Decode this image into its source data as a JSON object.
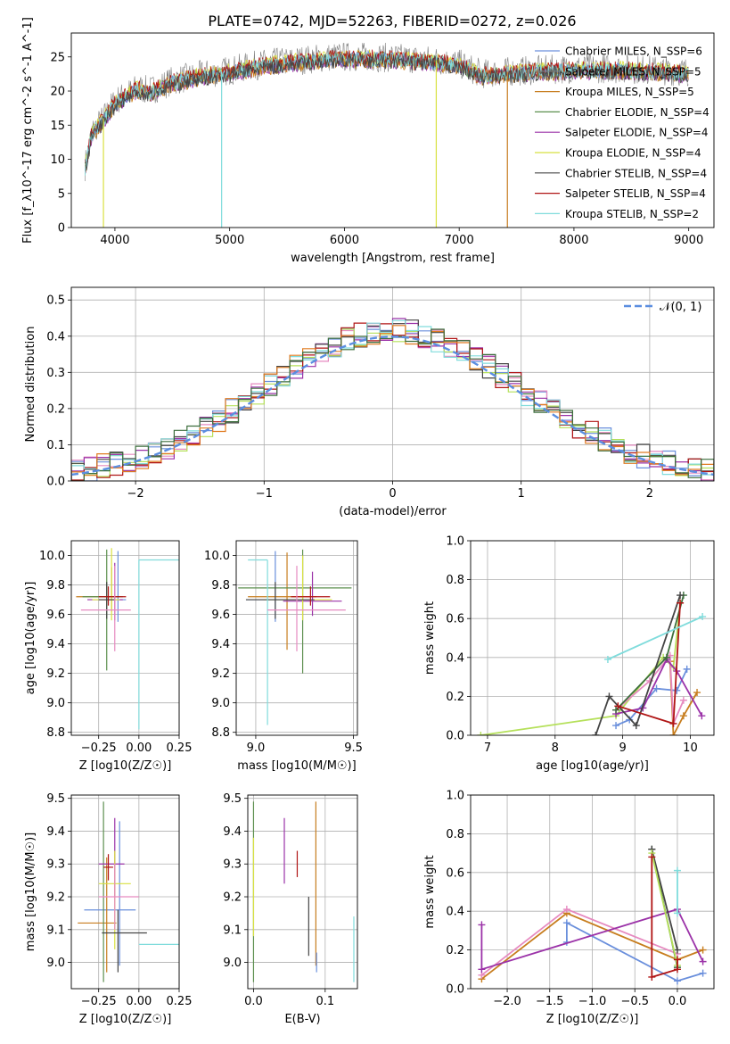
{
  "figure_title": "PLATE=0742, MJD=52263, FIBERID=0272, z=0.026",
  "colors": {
    "Chabrier MILES": "#6a8fdc",
    "Salpeter MILES": "#7f7f7f",
    "Kroupa MILES": "#c77d1e",
    "Chabrier ELODIE": "#5c8f4e",
    "Salpeter ELODIE": "#9b32a8",
    "Kroupa ELODIE": "#d8e040",
    "Chabrier STELIB": "#444444",
    "Salpeter STELIB": "#b01515",
    "Kroupa STELIB": "#80dcdc",
    "orange": "#e07b20",
    "pink": "#e68ac0",
    "lime": "#b5e05a",
    "green": "#3c6e3c",
    "purple": "#9b32a8",
    "gauss": "#5b8ee0"
  },
  "chart_data": [
    {
      "id": "spectrum",
      "type": "line",
      "title": "PLATE=0742, MJD=52263, FIBERID=0272, z=0.026",
      "xlabel": "wavelength [Angstrom, rest frame]",
      "ylabel": "Flux [f_λ10^-17 erg cm^-2 s^-1 A^-1]",
      "xlim": [
        3620,
        9220
      ],
      "ylim": [
        0,
        28.5
      ],
      "xticks": [
        4000,
        5000,
        6000,
        7000,
        8000,
        9000
      ],
      "yticks": [
        0,
        5,
        10,
        15,
        20,
        25
      ],
      "legend_position": "top-right",
      "legend": [
        "Chabrier MILES, N_SSP=6",
        "Salpeter MILES, N_SSP=5",
        "Kroupa MILES, N_SSP=5",
        "Chabrier ELODIE, N_SSP=4",
        "Salpeter ELODIE, N_SSP=4",
        "Kroupa ELODIE, N_SSP=4",
        "Chabrier STELIB, N_SSP=4",
        "Salpeter STELIB, N_SSP=4",
        "Kroupa STELIB, N_SSP=2"
      ],
      "continuum": {
        "x": [
          3740,
          3800,
          3900,
          4000,
          4100,
          4200,
          4300,
          4500,
          4800,
          5000,
          5300,
          5600,
          5900,
          6200,
          6500,
          6800,
          7000,
          7200,
          7400,
          7600,
          8000,
          8400,
          8800,
          9000
        ],
        "y": [
          9,
          14,
          16,
          18.5,
          19.5,
          20.5,
          20,
          21.5,
          22.5,
          23,
          24,
          24.5,
          25,
          25,
          24.8,
          24.5,
          24,
          22.5,
          22.8,
          23,
          23.3,
          23.3,
          23,
          22.8
        ]
      },
      "drops": [
        {
          "x": 3900,
          "to": 0,
          "series": "Kroupa ELODIE"
        },
        {
          "x": 4930,
          "to": 0,
          "series": "Kroupa STELIB"
        },
        {
          "x": 6800,
          "to": 0,
          "series": "Kroupa ELODIE"
        },
        {
          "x": 7420,
          "to": 0,
          "series": "Kroupa MILES"
        }
      ]
    },
    {
      "id": "residuals",
      "type": "histogram",
      "xlabel": "(data-model)/error",
      "ylabel": "Normed distribution",
      "xlim": [
        -2.5,
        2.5
      ],
      "ylim": [
        0,
        0.535
      ],
      "xticks": [
        -2,
        -1,
        0,
        1,
        2
      ],
      "yticks": [
        0.0,
        0.1,
        0.2,
        0.3,
        0.4,
        0.5
      ],
      "legend_position": "top-right",
      "legend": [
        "𝒩(0, 1)"
      ],
      "gaussian": {
        "mean": 0,
        "sigma": 1
      },
      "bin_width": 0.1
    },
    {
      "id": "age_vs_Z",
      "type": "errorbar",
      "xlabel": "Z [log10(Z/Z☉)]",
      "ylabel": "age [log10(age/yr)]",
      "xlim": [
        -0.42,
        0.25
      ],
      "ylim": [
        8.78,
        10.1
      ],
      "xticks": [
        -0.25,
        0.0,
        0.25
      ],
      "xticklabels": [
        "−0.25",
        "0.00",
        "0.25"
      ],
      "yticks": [
        8.8,
        9.0,
        9.2,
        9.4,
        9.6,
        9.8,
        10.0
      ],
      "points": [
        {
          "series": "Chabrier MILES",
          "x": -0.13,
          "xerr": [
            0.07,
            0.05
          ],
          "y": 9.7,
          "yerr": [
            0.15,
            0.33
          ]
        },
        {
          "series": "Kroupa MILES",
          "x": -0.17,
          "xerr": [
            0.22,
            0.05
          ],
          "y": 9.72,
          "yerr": [
            0.1,
            0.2
          ]
        },
        {
          "series": "Chabrier ELODIE",
          "x": -0.2,
          "xerr": [
            0.15,
            0.1
          ],
          "y": 9.72,
          "yerr": [
            0.5,
            0.32
          ]
        },
        {
          "series": "Salpeter ELODIE",
          "x": -0.15,
          "xerr": [
            0.17,
            0.05
          ],
          "y": 9.7,
          "yerr": [
            0.14,
            0.25
          ]
        },
        {
          "series": "Kroupa ELODIE",
          "x": -0.17,
          "xerr": [
            0.12,
            0.05
          ],
          "y": 9.7,
          "yerr": [
            0.14,
            0.35
          ]
        },
        {
          "series": "Chabrier STELIB",
          "x": -0.2,
          "xerr": [
            0.05,
            0.05
          ],
          "y": 9.7,
          "yerr": [
            0.13,
            0.12
          ]
        },
        {
          "series": "Salpeter STELIB",
          "x": -0.19,
          "xerr": [
            0.06,
            0.11
          ],
          "y": 9.72,
          "yerr": [
            0.06,
            0.07
          ]
        },
        {
          "series": "Kroupa STELIB",
          "x": 0.0,
          "xerr": [
            0.0,
            0.25
          ],
          "y": 9.97,
          "yerr": [
            1.15,
            0.0
          ]
        },
        {
          "series": "pink",
          "x": -0.15,
          "xerr": [
            0.21,
            0.1
          ],
          "y": 9.63,
          "yerr": [
            0.28,
            0.3
          ]
        }
      ]
    },
    {
      "id": "age_vs_mass",
      "type": "errorbar",
      "xlabel": "mass [log10(M/M☉)]",
      "ylabel": "",
      "xlim": [
        8.9,
        9.52
      ],
      "ylim": [
        8.78,
        10.1
      ],
      "xticks": [
        9.0,
        9.5
      ],
      "xticklabels": [
        "9.0",
        "9.5"
      ],
      "yticks": [
        8.8,
        9.0,
        9.2,
        9.4,
        9.6,
        9.8,
        10.0
      ],
      "points": [
        {
          "series": "Chabrier MILES",
          "x": 9.1,
          "xerr": [
            0.15,
            0.2
          ],
          "y": 9.7,
          "yerr": [
            0.15,
            0.33
          ]
        },
        {
          "series": "Kroupa MILES",
          "x": 9.16,
          "xerr": [
            0.2,
            0.15
          ],
          "y": 9.72,
          "yerr": [
            0.36,
            0.3
          ]
        },
        {
          "series": "Chabrier ELODIE",
          "x": 9.24,
          "xerr": [
            0.33,
            0.25
          ],
          "y": 9.78,
          "yerr": [
            0.58,
            0.26
          ]
        },
        {
          "series": "Salpeter ELODIE",
          "x": 9.29,
          "xerr": [
            0.15,
            0.15
          ],
          "y": 9.69,
          "yerr": [
            0.1,
            0.2
          ]
        },
        {
          "series": "Kroupa ELODIE",
          "x": 9.24,
          "xerr": [
            0.2,
            0.15
          ],
          "y": 9.7,
          "yerr": [
            0.14,
            0.3
          ]
        },
        {
          "series": "Chabrier STELIB",
          "x": 9.1,
          "xerr": [
            0.15,
            0.2
          ],
          "y": 9.7,
          "yerr": [
            0.13,
            0.12
          ]
        },
        {
          "series": "Salpeter STELIB",
          "x": 9.28,
          "xerr": [
            0.1,
            0.1
          ],
          "y": 9.72,
          "yerr": [
            0.06,
            0.07
          ]
        },
        {
          "series": "Kroupa STELIB",
          "x": 9.06,
          "xerr": [
            0.1,
            0.0
          ],
          "y": 9.97,
          "yerr": [
            1.12,
            0.0
          ]
        },
        {
          "series": "pink",
          "x": 9.21,
          "xerr": [
            0.15,
            0.25
          ],
          "y": 9.63,
          "yerr": [
            0.28,
            0.3
          ]
        }
      ]
    },
    {
      "id": "weight_vs_age",
      "type": "line",
      "xlabel": "age [log10(age/yr)]",
      "ylabel": "mass weight",
      "xlim": [
        6.75,
        10.35
      ],
      "ylim": [
        0.0,
        1.0
      ],
      "xticks": [
        7,
        8,
        9,
        10
      ],
      "yticks": [
        0.0,
        0.2,
        0.4,
        0.6,
        0.8,
        1.0
      ],
      "series": [
        {
          "name": "lime",
          "x": [
            6.9,
            8.9,
            9.6,
            9.75,
            9.85
          ],
          "y": [
            0.0,
            0.1,
            0.4,
            0.35,
            0.68
          ]
        },
        {
          "name": "Chabrier MILES",
          "x": [
            8.9,
            9.1,
            9.5,
            9.8,
            9.95
          ],
          "y": [
            0.05,
            0.08,
            0.24,
            0.23,
            0.34
          ]
        },
        {
          "name": "Kroupa MILES",
          "x": [
            9.7,
            9.75,
            9.9,
            10.1
          ],
          "y": [
            0.38,
            0.0,
            0.1,
            0.22
          ]
        },
        {
          "name": "pink",
          "x": [
            8.9,
            9.4,
            9.7,
            9.75,
            9.9
          ],
          "y": [
            0.13,
            0.28,
            0.41,
            0.06,
            0.18
          ]
        },
        {
          "name": "Salpeter ELODIE",
          "x": [
            8.9,
            9.3,
            9.65,
            9.8,
            10.17
          ],
          "y": [
            0.11,
            0.14,
            0.39,
            0.33,
            0.1
          ]
        },
        {
          "name": "green",
          "x": [
            8.9,
            9.65,
            9.9
          ],
          "y": [
            0.13,
            0.4,
            0.72
          ]
        },
        {
          "name": "Chabrier STELIB",
          "x": [
            8.6,
            8.8,
            9.2,
            9.85
          ],
          "y": [
            0.0,
            0.2,
            0.05,
            0.72
          ]
        },
        {
          "name": "Salpeter STELIB",
          "x": [
            8.93,
            9.75,
            9.85
          ],
          "y": [
            0.15,
            0.06,
            0.68
          ]
        },
        {
          "name": "Kroupa STELIB",
          "x": [
            8.78,
            10.18
          ],
          "y": [
            0.39,
            0.61
          ]
        }
      ]
    },
    {
      "id": "mass_vs_Z",
      "type": "errorbar",
      "xlabel": "Z [log10(Z/Z☉)]",
      "ylabel": "mass [log10(M/M☉)]",
      "xlim": [
        -0.42,
        0.25
      ],
      "ylim": [
        8.92,
        9.51
      ],
      "xticks": [
        -0.25,
        0.0,
        0.25
      ],
      "xticklabels": [
        "−0.25",
        "0.00",
        "0.25"
      ],
      "yticks": [
        9.0,
        9.1,
        9.2,
        9.3,
        9.4,
        9.5
      ],
      "points": [
        {
          "series": "Chabrier MILES",
          "x": -0.12,
          "xerr": [
            0.22,
            0.1
          ],
          "y": 9.16,
          "yerr": [
            0.17,
            0.27
          ]
        },
        {
          "series": "Kroupa MILES",
          "x": -0.2,
          "xerr": [
            0.18,
            0.06
          ],
          "y": 9.12,
          "yerr": [
            0.15,
            0.2
          ]
        },
        {
          "series": "Chabrier ELODIE",
          "x": -0.22,
          "xerr": [
            0.0,
            0.0
          ],
          "y": 9.2,
          "yerr": [
            0.26,
            0.29
          ]
        },
        {
          "series": "Salpeter ELODIE",
          "x": -0.15,
          "xerr": [
            0.1,
            0.06
          ],
          "y": 9.3,
          "yerr": [
            0.1,
            0.14
          ]
        },
        {
          "series": "Kroupa ELODIE",
          "x": -0.15,
          "xerr": [
            0.1,
            0.1
          ],
          "y": 9.24,
          "yerr": [
            0.2,
            0.1
          ]
        },
        {
          "series": "Chabrier STELIB",
          "x": -0.13,
          "xerr": [
            0.1,
            0.18
          ],
          "y": 9.09,
          "yerr": [
            0.12,
            0.07
          ]
        },
        {
          "series": "Salpeter STELIB",
          "x": -0.19,
          "xerr": [
            0.03,
            0.03
          ],
          "y": 9.29,
          "yerr": [
            0.04,
            0.04
          ]
        },
        {
          "series": "Kroupa STELIB",
          "x": 0.0,
          "xerr": [
            0.0,
            0.25
          ],
          "y": 9.055,
          "yerr": [
            0.0,
            0.0
          ]
        },
        {
          "series": "pink",
          "x": -0.15,
          "xerr": [
            0.1,
            0.15
          ],
          "y": 9.2,
          "yerr": [
            0.1,
            0.1
          ]
        }
      ]
    },
    {
      "id": "mass_vs_EBV",
      "type": "errorbar",
      "xlabel": "E(B-V)",
      "ylabel": "",
      "xlim": [
        -0.008,
        0.145
      ],
      "ylim": [
        8.92,
        9.51
      ],
      "xticks": [
        0.0,
        0.1
      ],
      "xticklabels": [
        "0.0",
        "0.1"
      ],
      "yticks": [
        9.0,
        9.1,
        9.2,
        9.3,
        9.4,
        9.5
      ],
      "points": [
        {
          "series": "Chabrier ELODIE",
          "x": 0.0,
          "y": 9.2,
          "yerr": [
            0.26,
            0.29
          ]
        },
        {
          "series": "Kroupa ELODIE",
          "x": 0.0,
          "y": 9.28,
          "yerr": [
            0.2,
            0.1
          ]
        },
        {
          "series": "Salpeter ELODIE",
          "x": 0.043,
          "y": 9.34,
          "yerr": [
            0.1,
            0.1
          ]
        },
        {
          "series": "Salpeter STELIB",
          "x": 0.061,
          "y": 9.3,
          "yerr": [
            0.04,
            0.04
          ]
        },
        {
          "series": "Chabrier STELIB",
          "x": 0.077,
          "y": 9.11,
          "yerr": [
            0.09,
            0.09
          ]
        },
        {
          "series": "Kroupa MILES",
          "x": 0.087,
          "y": 9.24,
          "yerr": [
            0.25,
            0.25
          ]
        },
        {
          "series": "Chabrier MILES",
          "x": 0.088,
          "y": 9.0,
          "yerr": [
            0.03,
            0.03
          ]
        },
        {
          "series": "Kroupa STELIB",
          "x": 0.14,
          "y": 9.04,
          "yerr": [
            0.1,
            0.1
          ]
        }
      ]
    },
    {
      "id": "weight_vs_Z",
      "type": "line",
      "xlabel": "Z [log10(Z/Z☉)]",
      "ylabel": "mass weight",
      "xlim": [
        -2.43,
        0.43
      ],
      "ylim": [
        0.0,
        1.0
      ],
      "xticks": [
        -2.0,
        -1.5,
        -1.0,
        -0.5,
        0.0
      ],
      "xticklabels": [
        "−2.0",
        "−1.5",
        "−1.0",
        "−0.5",
        "0.0"
      ],
      "yticks": [
        0.0,
        0.2,
        0.4,
        0.6,
        0.8,
        1.0
      ],
      "series": [
        {
          "name": "Chabrier MILES",
          "x": [
            -1.3,
            -1.3,
            0.0,
            0.3
          ],
          "y": [
            0.24,
            0.34,
            0.04,
            0.08
          ]
        },
        {
          "name": "Kroupa MILES",
          "x": [
            -2.3,
            -1.3,
            0.0,
            0.3
          ],
          "y": [
            0.05,
            0.39,
            0.15,
            0.2
          ]
        },
        {
          "name": "pink",
          "x": [
            -2.3,
            -1.3,
            0.0
          ],
          "y": [
            0.07,
            0.41,
            0.18
          ]
        },
        {
          "name": "Salpeter ELODIE",
          "x": [
            -2.3,
            -2.3,
            0.0,
            0.3
          ],
          "y": [
            0.33,
            0.1,
            0.41,
            0.14
          ]
        },
        {
          "name": "green",
          "x": [
            -0.3,
            0.0
          ],
          "y": [
            0.72,
            0.11
          ]
        },
        {
          "name": "Chabrier STELIB",
          "x": [
            -0.3,
            0.0
          ],
          "y": [
            0.72,
            0.2
          ]
        },
        {
          "name": "lime",
          "x": [
            -0.3,
            0.0
          ],
          "y": [
            0.7,
            0.12
          ]
        },
        {
          "name": "Salpeter STELIB",
          "x": [
            -0.3,
            -0.3,
            0.0,
            0.0
          ],
          "y": [
            0.68,
            0.06,
            0.1,
            0.15
          ]
        },
        {
          "name": "Kroupa STELIB",
          "x": [
            0.0,
            0.0
          ],
          "y": [
            0.39,
            0.61
          ]
        }
      ]
    }
  ]
}
